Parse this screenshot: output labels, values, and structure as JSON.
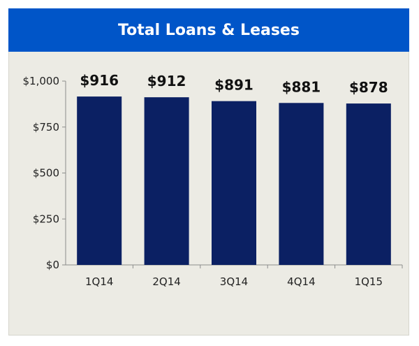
{
  "chart_data": {
    "type": "bar",
    "title": "Total Loans & Leases",
    "categories": [
      "1Q14",
      "2Q14",
      "3Q14",
      "4Q14",
      "1Q15"
    ],
    "values": [
      916,
      912,
      891,
      881,
      878
    ],
    "data_labels": [
      "$916",
      "$912",
      "$891",
      "$881",
      "$878"
    ],
    "ylim": [
      0,
      1000
    ],
    "yticks": [
      0,
      250,
      500,
      750,
      1000
    ],
    "ytick_labels": [
      "$0",
      "$250",
      "$500",
      "$750",
      "$1,000"
    ],
    "xlabel": "",
    "ylabel": "",
    "grid": false,
    "legend": "none",
    "colors": {
      "bar": "#0b2063",
      "title_bar": "#0055c8",
      "panel_bg": "#ecebe4",
      "axis": "#8c8c8c"
    }
  }
}
